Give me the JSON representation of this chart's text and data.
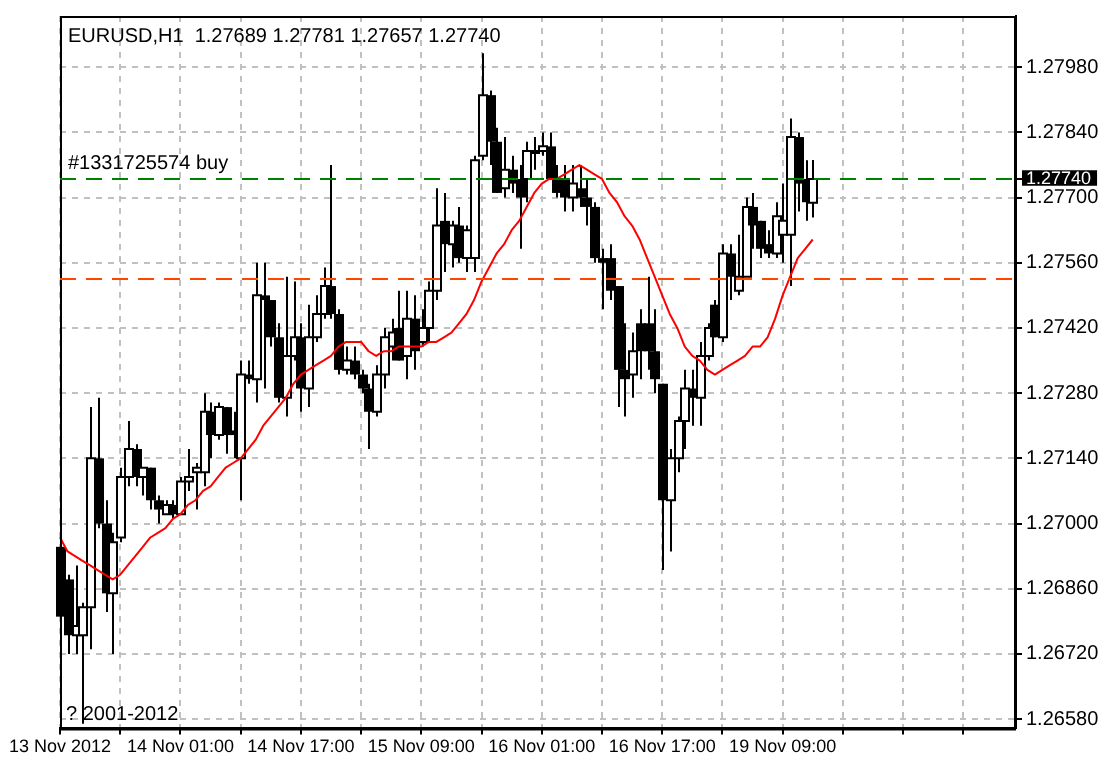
{
  "chart_data": {
    "type": "candlestick",
    "title": "EURUSD,H1  1.27689 1.27781 1.27657 1.27740",
    "categories": [
      "13 Nov 2012",
      null,
      null,
      null,
      null,
      null,
      null,
      null,
      null,
      null,
      null,
      null,
      null,
      null,
      null,
      null,
      "14 Nov 01:00",
      null,
      null,
      null,
      null,
      null,
      null,
      null,
      null,
      null,
      null,
      null,
      null,
      null,
      null,
      null,
      "14 Nov 17:00",
      null,
      null,
      null,
      null,
      null,
      null,
      null,
      null,
      null,
      null,
      null,
      null,
      null,
      null,
      null,
      "15 Nov 09:00",
      null,
      null,
      null,
      null,
      null,
      null,
      null,
      null,
      null,
      null,
      null,
      null,
      null,
      null,
      null,
      "16 Nov 01:00",
      null,
      null,
      null,
      null,
      null,
      null,
      null,
      null,
      null,
      null,
      null,
      null,
      null,
      null,
      null,
      "16 Nov 17:00",
      null,
      null,
      null,
      null,
      null,
      null,
      null,
      null,
      null,
      null,
      null,
      null,
      null,
      null,
      null,
      "19 Nov 09:00",
      null,
      null,
      null,
      null,
      null,
      null,
      null,
      null,
      null,
      null,
      null,
      null,
      null,
      null,
      null,
      null,
      null,
      null,
      null,
      null,
      null,
      null,
      null,
      null,
      null,
      null,
      null,
      null,
      null,
      null,
      null
    ],
    "ohlc": [
      [
        1.2695,
        1.2696,
        1.2679,
        1.268
      ],
      [
        1.2688,
        1.2689,
        1.2672,
        1.2676
      ],
      [
        1.2676,
        1.2691,
        1.2672,
        1.2678
      ],
      [
        1.2676,
        1.2683,
        1.2657,
        1.2682
      ],
      [
        1.2682,
        1.2725,
        1.2673,
        1.2714
      ],
      [
        1.2714,
        1.2727,
        1.2699,
        1.27
      ],
      [
        1.27,
        1.2705,
        1.2681,
        1.2685
      ],
      [
        1.2685,
        1.2698,
        1.2672,
        1.2696
      ],
      [
        1.2697,
        1.2712,
        1.2696,
        1.271
      ],
      [
        1.271,
        1.2722,
        1.2708,
        1.2716
      ],
      [
        1.2716,
        1.2717,
        1.2708,
        1.271
      ],
      [
        1.271,
        1.2712,
        1.2706,
        1.2712
      ],
      [
        1.2712,
        1.2712,
        1.2703,
        1.2705
      ],
      [
        1.2705,
        1.2706,
        1.27,
        1.2703
      ],
      [
        1.2702,
        1.2705,
        1.2702,
        1.2704
      ],
      [
        1.2704,
        1.2705,
        1.2701,
        1.2702
      ],
      [
        1.2702,
        1.271,
        1.2702,
        1.2709
      ],
      [
        1.2709,
        1.2716,
        1.2707,
        1.271
      ],
      [
        1.2711,
        1.2713,
        1.2703,
        1.2712
      ],
      [
        1.2711,
        1.2728,
        1.2708,
        1.2724
      ],
      [
        1.2724,
        1.2726,
        1.2714,
        1.2719
      ],
      [
        1.2719,
        1.2726,
        1.2718,
        1.2725
      ],
      [
        1.2725,
        1.2725,
        1.2715,
        1.2719
      ],
      [
        1.272,
        1.2724,
        1.2714,
        1.2719
      ],
      [
        1.2714,
        1.2735,
        1.2705,
        1.2732
      ],
      [
        1.2732,
        1.2735,
        1.273,
        1.2731
      ],
      [
        1.2731,
        1.2756,
        1.2726,
        1.2749
      ],
      [
        1.2749,
        1.2756,
        1.2729,
        1.2748
      ],
      [
        1.2748,
        1.2748,
        1.2738,
        1.274
      ],
      [
        1.274,
        1.2743,
        1.2726,
        1.2727
      ],
      [
        1.2727,
        1.2753,
        1.2723,
        1.2736
      ],
      [
        1.2736,
        1.2752,
        1.2735,
        1.274
      ],
      [
        1.274,
        1.2743,
        1.2724,
        1.2729
      ],
      [
        1.2729,
        1.2747,
        1.2725,
        1.274
      ],
      [
        1.274,
        1.2749,
        1.2739,
        1.2745
      ],
      [
        1.2745,
        1.2755,
        1.2744,
        1.2751
      ],
      [
        1.2751,
        1.2777,
        1.2744,
        1.2745
      ],
      [
        1.2745,
        1.2746,
        1.2732,
        1.2733
      ],
      [
        1.2733,
        1.2738,
        1.2732,
        1.2735
      ],
      [
        1.2735,
        1.2738,
        1.2731,
        1.2732
      ],
      [
        1.2732,
        1.2733,
        1.2728,
        1.2729
      ],
      [
        1.2729,
        1.273,
        1.2716,
        1.2724
      ],
      [
        1.2724,
        1.2734,
        1.2723,
        1.2732
      ],
      [
        1.2732,
        1.2742,
        1.2729,
        1.274
      ],
      [
        1.2738,
        1.2744,
        1.2735,
        1.2741
      ],
      [
        1.2742,
        1.275,
        1.2735,
        1.2735
      ],
      [
        1.2736,
        1.275,
        1.2731,
        1.2744
      ],
      [
        1.2744,
        1.2749,
        1.2733,
        1.2737
      ],
      [
        1.2739,
        1.2746,
        1.2738,
        1.2742
      ],
      [
        1.2742,
        1.2752,
        1.2739,
        1.275
      ],
      [
        1.275,
        1.2772,
        1.2748,
        1.2764
      ],
      [
        1.2765,
        1.2771,
        1.2754,
        1.276
      ],
      [
        1.276,
        1.2765,
        1.2755,
        1.2764
      ],
      [
        1.2764,
        1.2768,
        1.2756,
        1.2757
      ],
      [
        1.2757,
        1.2764,
        1.2754,
        1.2763
      ],
      [
        1.2757,
        1.2779,
        1.2754,
        1.2778
      ],
      [
        1.2779,
        1.2801,
        1.2778,
        1.2792
      ],
      [
        1.2792,
        1.2793,
        1.2777,
        1.2782
      ],
      [
        1.2782,
        1.2785,
        1.2771,
        1.2771
      ],
      [
        1.2772,
        1.2783,
        1.277,
        1.2776
      ],
      [
        1.2776,
        1.2779,
        1.2771,
        1.2773
      ],
      [
        1.2774,
        1.2777,
        1.2759,
        1.277
      ],
      [
        1.2774,
        1.2782,
        1.2769,
        1.278
      ],
      [
        1.278,
        1.2783,
        1.2776,
        1.278
      ],
      [
        1.278,
        1.2784,
        1.2779,
        1.2781
      ],
      [
        1.2781,
        1.2784,
        1.2774,
        1.2774
      ],
      [
        1.2774,
        1.2777,
        1.277,
        1.2771
      ],
      [
        1.2774,
        1.2777,
        1.2767,
        1.277
      ],
      [
        1.277,
        1.2777,
        1.2767,
        1.2773
      ],
      [
        1.2772,
        1.2777,
        1.2768,
        1.277
      ],
      [
        1.277,
        1.2774,
        1.2764,
        1.2768
      ],
      [
        1.2768,
        1.2769,
        1.2756,
        1.2757
      ],
      [
        1.2757,
        1.2759,
        1.2746,
        1.2756
      ],
      [
        1.2757,
        1.276,
        1.2748,
        1.275
      ],
      [
        1.2751,
        1.2751,
        1.2725,
        1.2733
      ],
      [
        1.2733,
        1.2743,
        1.2723,
        1.2731
      ],
      [
        1.2732,
        1.2741,
        1.2727,
        1.2737
      ],
      [
        1.2743,
        1.2746,
        1.2731,
        1.2737
      ],
      [
        1.2743,
        1.2753,
        1.2733,
        1.2737
      ],
      [
        1.2737,
        1.2746,
        1.2728,
        1.2731
      ],
      [
        1.273,
        1.273,
        1.269,
        1.2705
      ],
      [
        1.2705,
        1.2716,
        1.2694,
        1.2714
      ],
      [
        1.2714,
        1.2723,
        1.2711,
        1.2722
      ],
      [
        1.2722,
        1.2733,
        1.2716,
        1.2729
      ],
      [
        1.2729,
        1.2733,
        1.2721,
        1.2727
      ],
      [
        1.2727,
        1.2739,
        1.2721,
        1.2736
      ],
      [
        1.2736,
        1.2743,
        1.2735,
        1.2742
      ],
      [
        1.2747,
        1.2748,
        1.274,
        1.274
      ],
      [
        1.274,
        1.276,
        1.2739,
        1.2758
      ],
      [
        1.2758,
        1.276,
        1.2748,
        1.2753
      ],
      [
        1.275,
        1.2762,
        1.2749,
        1.2753
      ],
      [
        1.2753,
        1.277,
        1.2753,
        1.2768
      ],
      [
        1.2768,
        1.2771,
        1.2759,
        1.2764
      ],
      [
        1.2765,
        1.2765,
        1.2757,
        1.2759
      ],
      [
        1.276,
        1.2763,
        1.2757,
        1.2758
      ],
      [
        1.2758,
        1.2769,
        1.2757,
        1.2766
      ],
      [
        1.2762,
        1.2773,
        1.2756,
        1.2765
      ],
      [
        1.2762,
        1.2787,
        1.2751,
        1.2783
      ],
      [
        1.2783,
        1.2784,
        1.2767,
        1.2773
      ],
      [
        1.2774,
        1.2778,
        1.2765,
        1.2769
      ],
      [
        1.27689,
        1.27781,
        1.27657,
        1.2774
      ],
      null,
      null,
      null,
      null,
      null,
      null,
      null,
      null,
      null,
      null,
      null,
      null,
      null,
      null,
      null,
      null,
      null,
      null,
      null,
      null,
      null,
      null,
      null,
      null,
      null,
      null,
      null
    ],
    "series": [
      {
        "type": "line",
        "color": "#ff0000",
        "values": [
          1.2697,
          1.2694,
          1.2693,
          1.2692,
          1.2691,
          1.269,
          1.2689,
          1.2688,
          1.2689,
          1.2691,
          1.2693,
          1.2695,
          1.2697,
          1.2698,
          1.2699,
          1.2701,
          1.2702,
          1.2704,
          1.2705,
          1.2707,
          1.2708,
          1.271,
          1.2712,
          1.2713,
          1.2714,
          1.2716,
          1.2718,
          1.2721,
          1.2723,
          1.2725,
          1.2727,
          1.273,
          1.2732,
          1.2733,
          1.2734,
          1.2735,
          1.2736,
          1.2738,
          1.2739,
          1.2739,
          1.2739,
          1.2737,
          1.2736,
          1.2737,
          1.2737,
          1.2738,
          1.2738,
          1.2738,
          1.2738,
          1.2739,
          1.2739,
          1.274,
          1.2741,
          1.2743,
          1.2745,
          1.2748,
          1.2752,
          1.2755,
          1.2758,
          1.276,
          1.2763,
          1.2765,
          1.2768,
          1.2771,
          1.2773,
          1.2774,
          1.2774,
          1.2775,
          1.2776,
          1.2777,
          1.2776,
          1.2775,
          1.2774,
          1.2771,
          1.2769,
          1.2766,
          1.2764,
          1.2761,
          1.2757,
          1.2753,
          1.2749,
          1.2745,
          1.2742,
          1.2738,
          1.2736,
          1.2735,
          1.2733,
          1.2732,
          1.2733,
          1.2734,
          1.2735,
          1.2736,
          1.2738,
          1.2738,
          1.274,
          1.2744,
          1.2749,
          1.2753,
          1.2757,
          1.2759,
          1.2761,
          null,
          null,
          null,
          null,
          null,
          null,
          null,
          null,
          null,
          null,
          null,
          null,
          null,
          null,
          null,
          null,
          null,
          null,
          null,
          null,
          null,
          null,
          null,
          null,
          null,
          null,
          null
        ]
      }
    ],
    "ylim": [
      1.2656,
      1.2809
    ],
    "yticks": [
      {
        "value": 1.2658,
        "label": "1.26580"
      },
      {
        "value": 1.2672,
        "label": "1.26720"
      },
      {
        "value": 1.2686,
        "label": "1.26860"
      },
      {
        "value": 1.27,
        "label": "1.27000"
      },
      {
        "value": 1.2714,
        "label": "1.27140"
      },
      {
        "value": 1.2728,
        "label": "1.27280"
      },
      {
        "value": 1.2742,
        "label": "1.27420"
      },
      {
        "value": 1.2756,
        "label": "1.27560"
      },
      {
        "value": 1.277,
        "label": "1.27700"
      },
      {
        "value": 1.2774,
        "label": "1.27740"
      },
      {
        "value": 1.2784,
        "label": "1.27840"
      },
      {
        "value": 1.2798,
        "label": "1.27980"
      }
    ],
    "ref_lines": [
      {
        "axis": "y",
        "value": 1.2774,
        "label": "#1331725574 buy",
        "color": "#008000",
        "line_style": "dashed"
      },
      {
        "axis": "y",
        "value": 1.27526,
        "color": "#ff4500",
        "line_style": "dashed"
      }
    ],
    "annotations": [
      "? 2001-2012"
    ],
    "grid": true
  }
}
